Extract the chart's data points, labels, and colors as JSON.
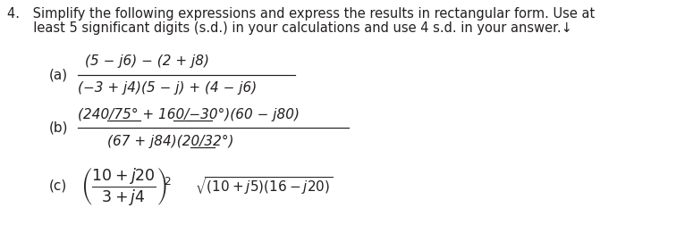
{
  "bg_color": "#ffffff",
  "text_color": "#231f20",
  "fs_title": 10.5,
  "fs_body": 11.0,
  "title1": "4. Simplify the following expressions and express the results in rectangular form. Use at",
  "title2": "  least 5 significant digits (s.d.) in your calculations and use 4 s.d. in your answer.↓",
  "label_a": "(a)",
  "label_b": "(b)",
  "label_c": "(c)",
  "a_num": "$(5-j6)-(2+j8)$",
  "a_den": "$(-3+j4)(5-j)+(4-j6)$",
  "b_num": "$(240/\\!\\underline{75^\\circ}+160/\\!\\underline{-30^\\circ})(60-j80)$",
  "b_den": "$(67+j84)(20/\\!\\underline{32^\\circ})$",
  "c_frac": "$\\left(\\dfrac{10+j20}{3+j4}\\right)^{\\!2}$",
  "c_sqrt": "$\\sqrt{(10+j5)(16-j20)}$",
  "angle_bar_color": "#231f20"
}
